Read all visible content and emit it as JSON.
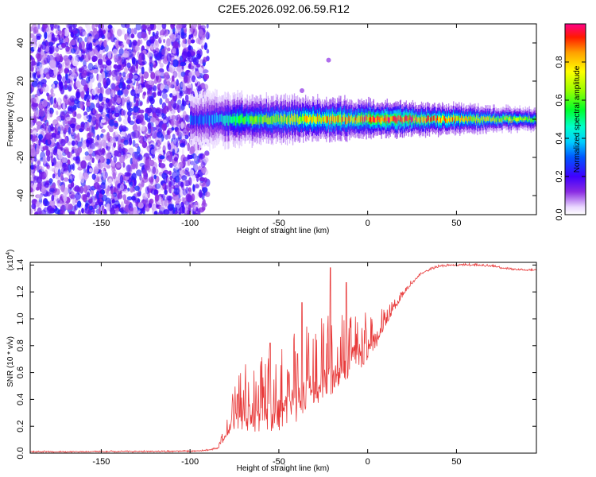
{
  "chart_data": [
    {
      "type": "heatmap",
      "title": "C2E5.2026.092.06.59.R12",
      "xlabel": "Height of straight line (km)",
      "ylabel": "Frequency (Hz)",
      "xlim": [
        -190,
        95
      ],
      "ylim": [
        -50,
        50
      ],
      "xticks": [
        -150,
        -100,
        -50,
        0,
        50
      ],
      "yticks": [
        -40,
        -20,
        0,
        20,
        40
      ],
      "colorbar": {
        "label": "Normalized spectral amplitude",
        "range": [
          0,
          1
        ],
        "ticks": [
          0.0,
          0.2,
          0.4,
          0.6,
          0.8
        ],
        "colormap": "rainbow"
      },
      "features": [
        {
          "name": "noise-region",
          "x_range": [
            -190,
            -90
          ],
          "y_range": [
            -50,
            50
          ],
          "amplitude": [
            0.1,
            0.25
          ]
        },
        {
          "name": "signal-band",
          "x_range": [
            -100,
            95
          ],
          "center_freq": 0,
          "half_width": [
            8,
            3
          ],
          "amplitude_peak": 1.0
        },
        {
          "name": "outlier-dots",
          "points": [
            [
              -22,
              31
            ],
            [
              -37,
              15
            ]
          ]
        }
      ]
    },
    {
      "type": "line",
      "xlabel": "Height of straight line (km)",
      "ylabel": "SNR (10 * v/v)",
      "y_multiplier": "(x10",
      "y_multiplier_exp": "4",
      "y_multiplier_close": ")",
      "xlim": [
        -190,
        95
      ],
      "ylim": [
        0,
        1.42
      ],
      "xticks": [
        -150,
        -100,
        -50,
        0,
        50
      ],
      "yticks": [
        0.0,
        0.2,
        0.4,
        0.6,
        0.8,
        1.0,
        1.2,
        1.4
      ],
      "series": [
        {
          "name": "SNR",
          "color": "#e83a3a",
          "x": [
            -190,
            -170,
            -150,
            -120,
            -100,
            -90,
            -84,
            -80,
            -76,
            -72,
            -68,
            -64,
            -60,
            -56,
            -52,
            -48,
            -44,
            -40,
            -36,
            -32,
            -28,
            -24,
            -20,
            -16,
            -12,
            -8,
            -4,
            0,
            4,
            8,
            12,
            16,
            20,
            24,
            28,
            32,
            36,
            40,
            50,
            60,
            70,
            80,
            95
          ],
          "baseline": [
            0.01,
            0.01,
            0.012,
            0.012,
            0.015,
            0.02,
            0.04,
            0.13,
            0.24,
            0.26,
            0.28,
            0.27,
            0.3,
            0.31,
            0.3,
            0.33,
            0.35,
            0.38,
            0.42,
            0.46,
            0.5,
            0.54,
            0.58,
            0.62,
            0.66,
            0.7,
            0.74,
            0.78,
            0.84,
            0.92,
            1.02,
            1.1,
            1.18,
            1.25,
            1.31,
            1.35,
            1.37,
            1.39,
            1.4,
            1.4,
            1.39,
            1.37,
            1.36
          ],
          "spike_amplitude": [
            0.004,
            0.004,
            0.004,
            0.004,
            0.004,
            0.006,
            0.02,
            0.1,
            0.22,
            0.35,
            0.4,
            0.42,
            0.45,
            0.47,
            0.48,
            0.5,
            0.52,
            0.52,
            0.52,
            0.52,
            0.5,
            0.48,
            0.46,
            0.44,
            0.42,
            0.4,
            0.35,
            0.3,
            0.25,
            0.18,
            0.1,
            0.06,
            0.04,
            0.03,
            0.02,
            0.015,
            0.012,
            0.012,
            0.012,
            0.012,
            0.012,
            0.012,
            0.012
          ],
          "peaks": [
            [
              -21,
              1.38
            ],
            [
              -12,
              1.27
            ],
            [
              -37,
              1.12
            ],
            [
              -55,
              0.82
            ]
          ]
        }
      ]
    }
  ]
}
